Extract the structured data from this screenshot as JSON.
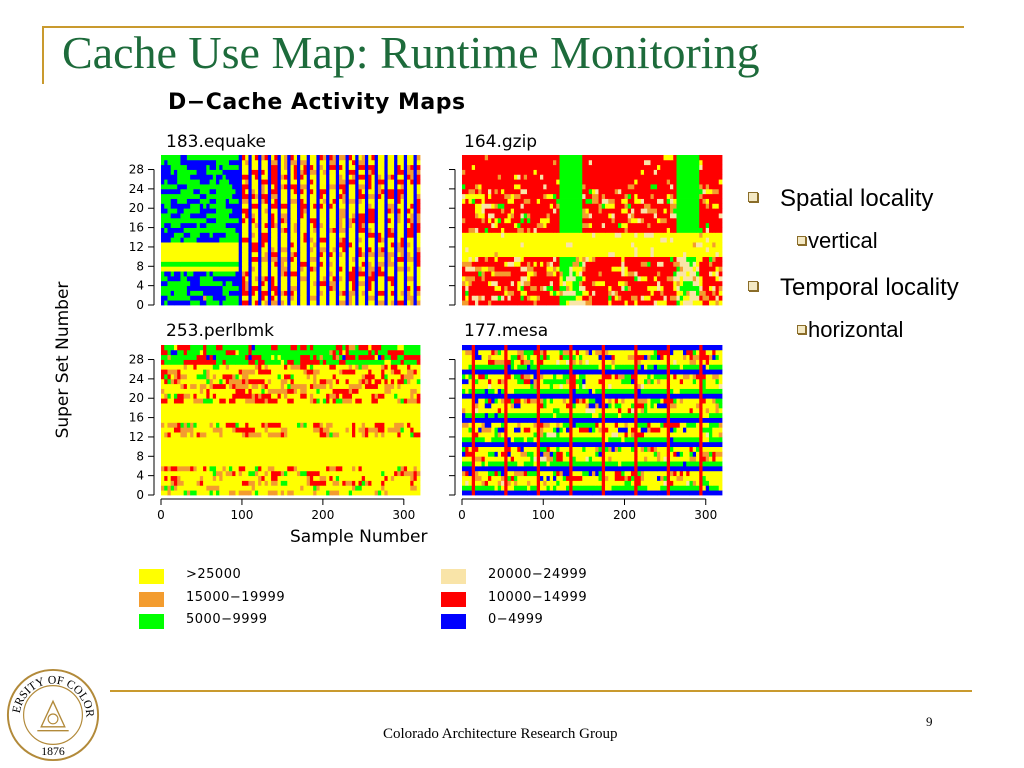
{
  "slide": {
    "title": "Cache Use Map: Runtime Monitoring",
    "footer": "Colorado Architecture Research Group",
    "page_number": "9",
    "seal_text": "UNIVERSITY OF COLORADO",
    "seal_year": "1876"
  },
  "bullets": [
    {
      "level": 1,
      "text": "Spatial locality"
    },
    {
      "level": 2,
      "text": "vertical"
    },
    {
      "level": 1,
      "text": "Temporal locality"
    },
    {
      "level": 2,
      "text": "horizontal"
    }
  ],
  "chart_data": {
    "type": "heatmap",
    "title": "D−Cache Activity Maps",
    "xlabel": "Sample Number",
    "ylabel": "Super Set Number",
    "xlim": [
      0,
      320
    ],
    "ylim": [
      0,
      31
    ],
    "x_ticks": [
      0,
      100,
      200,
      300
    ],
    "y_ticks": [
      0,
      4,
      8,
      12,
      16,
      20,
      24,
      28
    ],
    "legend": [
      {
        "label": ">25000",
        "color": "#ffff00"
      },
      {
        "label": "20000−24999",
        "color": "#f9e4a8"
      },
      {
        "label": "15000−19999",
        "color": "#f39c2f"
      },
      {
        "label": "10000−14999",
        "color": "#ff0000"
      },
      {
        "label": "5000−9999",
        "color": "#00ff00"
      },
      {
        "label": "0−4999",
        "color": "#0000ff"
      }
    ],
    "panels": [
      {
        "name": "183.equake"
      },
      {
        "name": "164.gzip"
      },
      {
        "name": "253.perlbmk"
      },
      {
        "name": "177.mesa"
      }
    ]
  }
}
